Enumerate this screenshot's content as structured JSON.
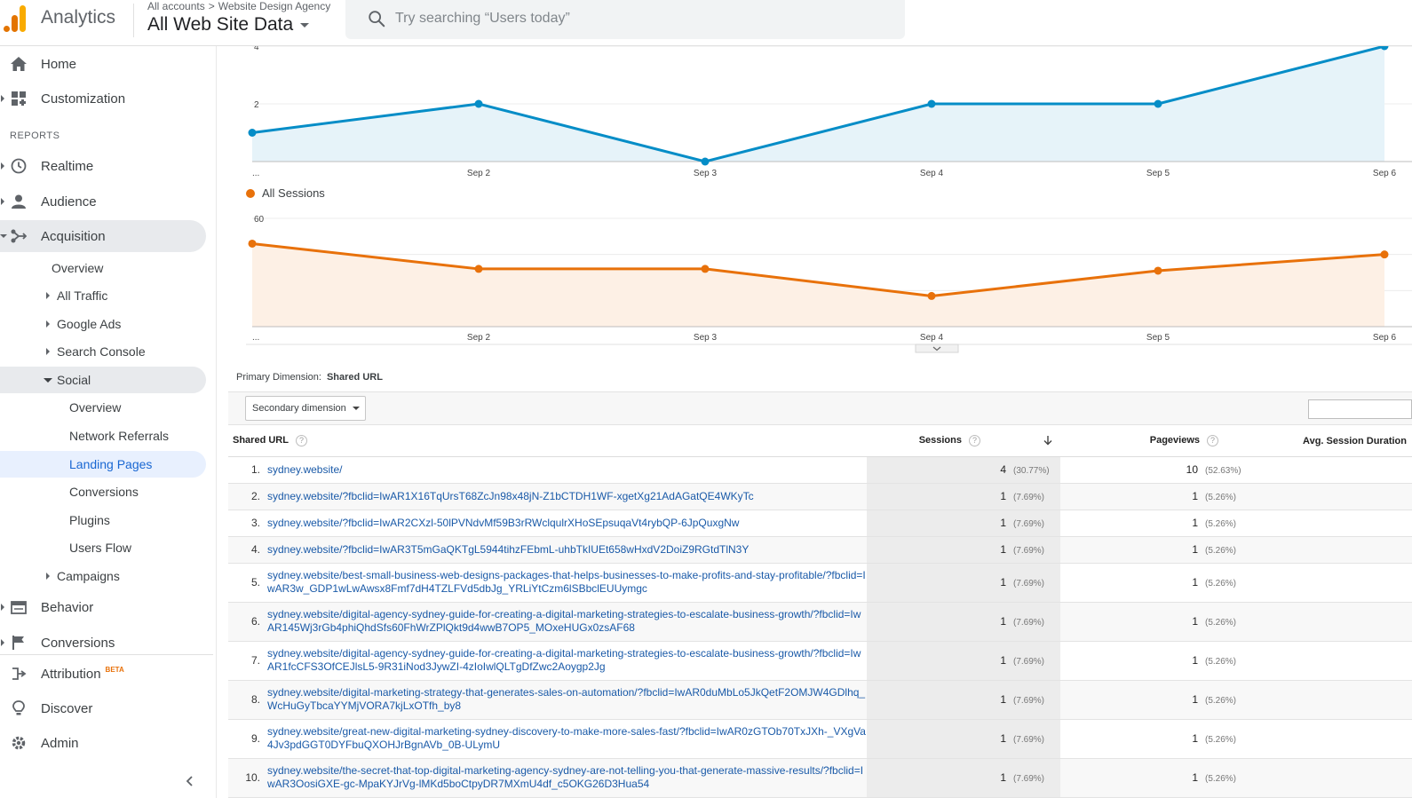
{
  "header": {
    "app_name": "Analytics",
    "breadcrumb": [
      "All accounts",
      "Website Design Agency"
    ],
    "breadcrumb_sep": ">",
    "view_name": "All Web Site Data",
    "search_placeholder": "Try searching “Users today”"
  },
  "sidebar": {
    "top_items": [
      {
        "label": "Home",
        "icon": "home-icon"
      },
      {
        "label": "Customization",
        "icon": "dashboard-icon"
      }
    ],
    "reports_heading": "REPORTS",
    "report_items": [
      {
        "label": "Realtime",
        "icon": "clock-icon"
      },
      {
        "label": "Audience",
        "icon": "person-icon"
      },
      {
        "label": "Acquisition",
        "icon": "acquisition-icon"
      }
    ],
    "acquisition_sub": [
      "Overview",
      "All Traffic",
      "Google Ads",
      "Search Console",
      "Social"
    ],
    "social_sub": [
      "Overview",
      "Network Referrals",
      "Landing Pages",
      "Conversions",
      "Plugins",
      "Users Flow"
    ],
    "campaigns": "Campaigns",
    "lower_items": [
      {
        "label": "Behavior",
        "icon": "behavior-icon"
      },
      {
        "label": "Conversions",
        "icon": "flag-icon"
      }
    ],
    "bottom_items": [
      {
        "label": "Attribution",
        "badge": "BETA",
        "icon": "attribution-icon"
      },
      {
        "label": "Discover",
        "icon": "lightbulb-icon"
      },
      {
        "label": "Admin",
        "icon": "gear-icon"
      }
    ]
  },
  "chart_data": [
    {
      "type": "area",
      "categories": [
        "...",
        "Sep 2",
        "Sep 3",
        "Sep 4",
        "Sep 5",
        "Sep 6"
      ],
      "series": [
        {
          "values": [
            1,
            2,
            0,
            2,
            2,
            4
          ]
        }
      ],
      "yticks": [
        2,
        4
      ],
      "ylim": [
        0,
        4
      ],
      "color": "#058dc7"
    },
    {
      "type": "area",
      "categories": [
        "...",
        "Sep 2",
        "Sep 3",
        "Sep 4",
        "Sep 5",
        "Sep 6"
      ],
      "series": [
        {
          "name": "All Sessions",
          "values": [
            46,
            32,
            32,
            17,
            31,
            40
          ]
        }
      ],
      "yticks": [
        20,
        40,
        60
      ],
      "ylim": [
        0,
        60
      ],
      "color": "#e8710a"
    }
  ],
  "table": {
    "primary_dimension_label": "Primary Dimension:",
    "primary_dimension_value": "Shared URL",
    "secondary_dimension_label": "Secondary dimension",
    "columns": [
      "Shared URL",
      "Sessions",
      "Pageviews",
      "Avg. Session Duration"
    ],
    "rows": [
      {
        "n": "1.",
        "url": "sydney.website/",
        "sessions": "4",
        "sessions_pct": "(30.77%)",
        "pageviews": "10",
        "pageviews_pct": "(52.63%)"
      },
      {
        "n": "2.",
        "url": "sydney.website/?fbclid=IwAR1X16TqUrsT68ZcJn98x48jN-Z1bCTDH1WF-xgetXg21AdAGatQE4WKyTc",
        "sessions": "1",
        "sessions_pct": "(7.69%)",
        "pageviews": "1",
        "pageviews_pct": "(5.26%)"
      },
      {
        "n": "3.",
        "url": "sydney.website/?fbclid=IwAR2CXzl-50lPVNdvMf59B3rRWclqulrXHoSEpsuqaVt4rybQP-6JpQuxgNw",
        "sessions": "1",
        "sessions_pct": "(7.69%)",
        "pageviews": "1",
        "pageviews_pct": "(5.26%)"
      },
      {
        "n": "4.",
        "url": "sydney.website/?fbclid=IwAR3T5mGaQKTgL5944tihzFEbmL-uhbTkIUEt658wHxdV2DoiZ9RGtdTlN3Y",
        "sessions": "1",
        "sessions_pct": "(7.69%)",
        "pageviews": "1",
        "pageviews_pct": "(5.26%)"
      },
      {
        "n": "5.",
        "url": "sydney.website/best-small-business-web-designs-packages-that-helps-businesses-to-make-profits-and-stay-profitable/?fbclid=IwAR3w_GDP1wLwAwsx8Fmf7dH4TZLFVd5dbJg_YRLiYtCzm6lSBbclEUUymgc",
        "sessions": "1",
        "sessions_pct": "(7.69%)",
        "pageviews": "1",
        "pageviews_pct": "(5.26%)"
      },
      {
        "n": "6.",
        "url": "sydney.website/digital-agency-sydney-guide-for-creating-a-digital-marketing-strategies-to-escalate-business-growth/?fbclid=IwAR145Wj3rGb4phiQhdSfs60FhWrZPlQkt9d4wwB7OP5_MOxeHUGx0zsAF68",
        "sessions": "1",
        "sessions_pct": "(7.69%)",
        "pageviews": "1",
        "pageviews_pct": "(5.26%)"
      },
      {
        "n": "7.",
        "url": "sydney.website/digital-agency-sydney-guide-for-creating-a-digital-marketing-strategies-to-escalate-business-growth/?fbclid=IwAR1fcCFS3OfCEJlsL5-9R31iNod3JywZI-4zIoIwlQLTgDfZwc2Aoygp2Jg",
        "sessions": "1",
        "sessions_pct": "(7.69%)",
        "pageviews": "1",
        "pageviews_pct": "(5.26%)"
      },
      {
        "n": "8.",
        "url": "sydney.website/digital-marketing-strategy-that-generates-sales-on-automation/?fbclid=IwAR0duMbLo5JkQetF2OMJW4GDlhq_WcHuGyTbcaYYMjVORA7kjLxOTfh_by8",
        "sessions": "1",
        "sessions_pct": "(7.69%)",
        "pageviews": "1",
        "pageviews_pct": "(5.26%)"
      },
      {
        "n": "9.",
        "url": "sydney.website/great-new-digital-marketing-sydney-discovery-to-make-more-sales-fast/?fbclid=IwAR0zGTOb70TxJXh-_VXgVa4Jv3pdGGT0DYFbuQXOHJrBgnAVb_0B-ULymU",
        "sessions": "1",
        "sessions_pct": "(7.69%)",
        "pageviews": "1",
        "pageviews_pct": "(5.26%)"
      },
      {
        "n": "10.",
        "url": "sydney.website/the-secret-that-top-digital-marketing-agency-sydney-are-not-telling-you-that-generate-massive-results/?fbclid=IwAR3OosiGXE-gc-MpaKYJrVg-lMKd5boCtpyDR7MXmU4df_c5OKG26D3Hua54",
        "sessions": "1",
        "sessions_pct": "(7.69%)",
        "pageviews": "1",
        "pageviews_pct": "(5.26%)"
      }
    ]
  }
}
